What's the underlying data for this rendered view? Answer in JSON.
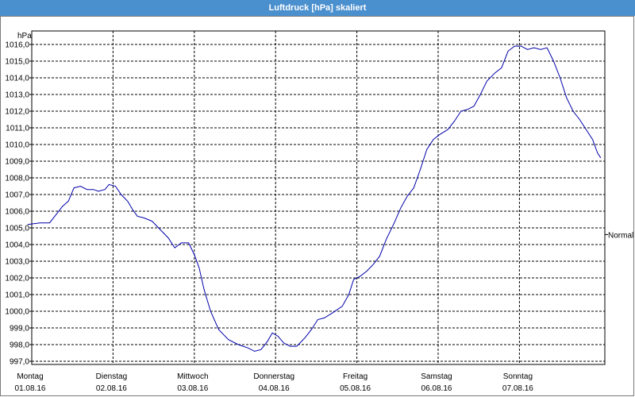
{
  "window": {
    "title": "Luftdruck [hPa] skaliert"
  },
  "chart_data": {
    "type": "line",
    "title": "Luftdruck [hPa] skaliert",
    "ylabel": "hPa",
    "ylim": [
      996.7,
      1016.6
    ],
    "yticks": [
      "997,0",
      "998,0",
      "999,0",
      "1000,0",
      "1001,0",
      "1002,0",
      "1003,0",
      "1004,0",
      "1005,0",
      "1006,0",
      "1007,0",
      "1008,0",
      "1009,0",
      "1010,0",
      "1011,0",
      "1012,0",
      "1013,0",
      "1014,0",
      "1015,0",
      "1016,0"
    ],
    "ytick_values": [
      997,
      998,
      999,
      1000,
      1001,
      1002,
      1003,
      1004,
      1005,
      1006,
      1007,
      1008,
      1009,
      1010,
      1011,
      1012,
      1013,
      1014,
      1015,
      1016
    ],
    "xlim": [
      0,
      7.07
    ],
    "xticks": [
      {
        "x": 0,
        "day": "Montag",
        "date": "01.08.16"
      },
      {
        "x": 1,
        "day": "Dienstag",
        "date": "02.08.16"
      },
      {
        "x": 2,
        "day": "Mittwoch",
        "date": "03.08.16"
      },
      {
        "x": 3,
        "day": "Donnerstag",
        "date": "04.08.16"
      },
      {
        "x": 4,
        "day": "Freitag",
        "date": "05.08.16"
      },
      {
        "x": 5,
        "day": "Samstag",
        "date": "06.08.16"
      },
      {
        "x": 6,
        "day": "Sonntag",
        "date": "07.08.16"
      }
    ],
    "grid": true,
    "reference_label": "Normal",
    "reference_value": 1004.6,
    "series": [
      {
        "color": "#0000aa",
        "points": [
          [
            -0.05,
            1005.2
          ],
          [
            0.1,
            1005.3
          ],
          [
            0.22,
            1005.3
          ],
          [
            0.3,
            1005.8
          ],
          [
            0.38,
            1006.3
          ],
          [
            0.45,
            1006.6
          ],
          [
            0.52,
            1007.4
          ],
          [
            0.6,
            1007.5
          ],
          [
            0.68,
            1007.3
          ],
          [
            0.76,
            1007.3
          ],
          [
            0.82,
            1007.2
          ],
          [
            0.9,
            1007.3
          ],
          [
            0.95,
            1007.6
          ],
          [
            1.03,
            1007.5
          ],
          [
            1.1,
            1007.0
          ],
          [
            1.18,
            1006.6
          ],
          [
            1.24,
            1006.1
          ],
          [
            1.3,
            1005.7
          ],
          [
            1.38,
            1005.6
          ],
          [
            1.48,
            1005.4
          ],
          [
            1.58,
            1004.9
          ],
          [
            1.68,
            1004.4
          ],
          [
            1.76,
            1003.8
          ],
          [
            1.84,
            1004.1
          ],
          [
            1.93,
            1004.1
          ],
          [
            2.0,
            1003.4
          ],
          [
            2.06,
            1002.6
          ],
          [
            2.12,
            1001.3
          ],
          [
            2.2,
            1000.0
          ],
          [
            2.3,
            998.9
          ],
          [
            2.42,
            998.3
          ],
          [
            2.54,
            998.0
          ],
          [
            2.66,
            997.8
          ],
          [
            2.74,
            997.6
          ],
          [
            2.82,
            997.7
          ],
          [
            2.9,
            998.2
          ],
          [
            2.96,
            998.7
          ],
          [
            3.03,
            998.5
          ],
          [
            3.1,
            998.1
          ],
          [
            3.18,
            997.9
          ],
          [
            3.26,
            997.9
          ],
          [
            3.36,
            998.4
          ],
          [
            3.44,
            998.9
          ],
          [
            3.52,
            999.5
          ],
          [
            3.6,
            999.6
          ],
          [
            3.7,
            999.9
          ],
          [
            3.82,
            1000.3
          ],
          [
            3.9,
            1001.0
          ],
          [
            3.96,
            1001.9
          ],
          [
            4.04,
            1002.1
          ],
          [
            4.12,
            1002.4
          ],
          [
            4.2,
            1002.8
          ],
          [
            4.28,
            1003.3
          ],
          [
            4.36,
            1004.3
          ],
          [
            4.46,
            1005.3
          ],
          [
            4.54,
            1006.2
          ],
          [
            4.62,
            1006.9
          ],
          [
            4.7,
            1007.4
          ],
          [
            4.78,
            1008.5
          ],
          [
            4.86,
            1009.7
          ],
          [
            4.94,
            1010.3
          ],
          [
            5.02,
            1010.6
          ],
          [
            5.12,
            1010.9
          ],
          [
            5.2,
            1011.4
          ],
          [
            5.28,
            1012.0
          ],
          [
            5.36,
            1012.1
          ],
          [
            5.44,
            1012.3
          ],
          [
            5.52,
            1013.0
          ],
          [
            5.6,
            1013.8
          ],
          [
            5.7,
            1014.3
          ],
          [
            5.78,
            1014.6
          ],
          [
            5.86,
            1015.6
          ],
          [
            5.94,
            1015.9
          ],
          [
            6.02,
            1015.9
          ],
          [
            6.1,
            1015.7
          ],
          [
            6.18,
            1015.8
          ],
          [
            6.26,
            1015.7
          ],
          [
            6.34,
            1015.8
          ],
          [
            6.42,
            1015.0
          ],
          [
            6.5,
            1014.0
          ],
          [
            6.58,
            1012.8
          ],
          [
            6.66,
            1012.0
          ],
          [
            6.74,
            1011.5
          ],
          [
            6.82,
            1010.9
          ],
          [
            6.9,
            1010.3
          ],
          [
            6.96,
            1009.5
          ],
          [
            7.0,
            1009.2
          ]
        ]
      }
    ]
  }
}
